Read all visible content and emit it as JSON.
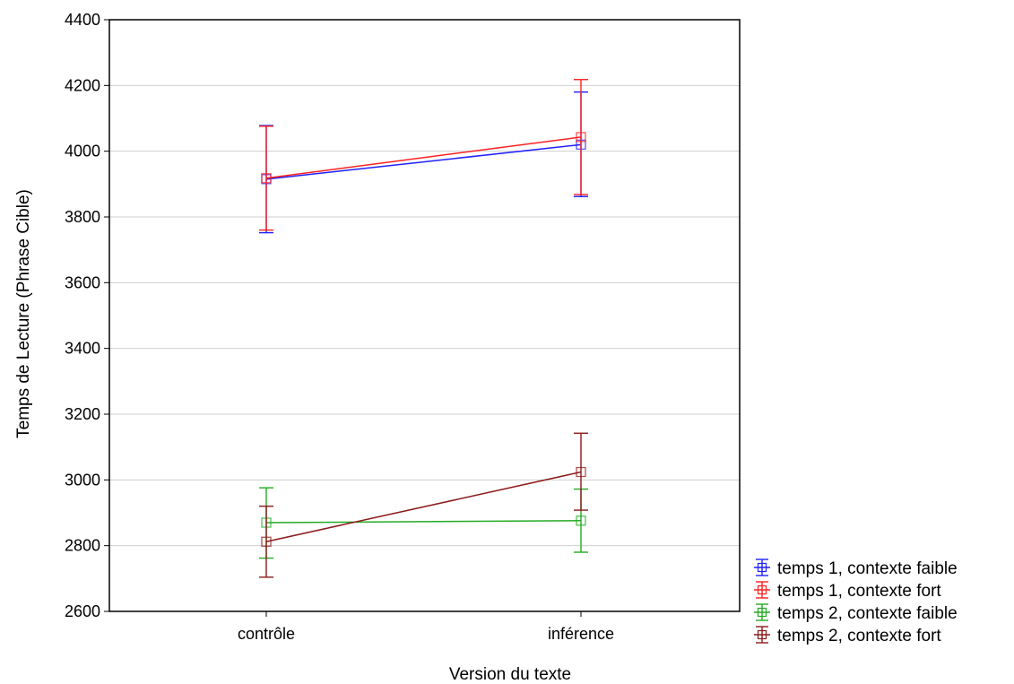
{
  "chart_data": {
    "type": "line",
    "xlabel": "Version du texte",
    "ylabel": "Temps de Lecture (Phrase Cible)",
    "categories": [
      "contrôle",
      "inférence"
    ],
    "ylim": [
      2600,
      4400
    ],
    "yticks": [
      2600,
      2800,
      3000,
      3200,
      3400,
      3600,
      3800,
      4000,
      4200,
      4400
    ],
    "grid": true,
    "legend_position": "bottom-right, outside plot",
    "series": [
      {
        "name": "temps 1, contexte faible",
        "color": "#1f1fff",
        "values": [
          3915,
          4020
        ],
        "error_low": [
          3752,
          3862
        ],
        "error_high": [
          4078,
          4180
        ]
      },
      {
        "name": "temps 1, contexte fort",
        "color": "#ff2020",
        "values": [
          3918,
          4043
        ],
        "error_low": [
          3760,
          3868
        ],
        "error_high": [
          4076,
          4218
        ]
      },
      {
        "name": "temps 2, contexte faible",
        "color": "#22aa22",
        "values": [
          2870,
          2876
        ],
        "error_low": [
          2762,
          2780
        ],
        "error_high": [
          2976,
          2972
        ]
      },
      {
        "name": "temps 2, contexte fort",
        "color": "#8b1a1a",
        "values": [
          2812,
          3024
        ],
        "error_low": [
          2704,
          2908
        ],
        "error_high": [
          2920,
          3142
        ]
      }
    ]
  }
}
